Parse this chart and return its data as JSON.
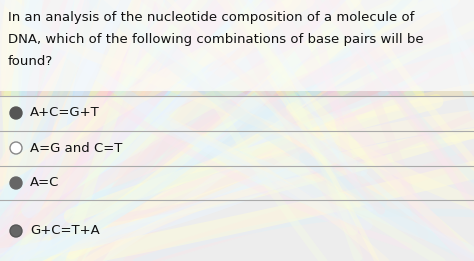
{
  "question_text_line1": "In an analysis of the nucleotide composition of a molecule of",
  "question_text_line2": "DNA, which of the following combinations of base pairs will be",
  "question_text_line3": "found?",
  "options": [
    "A+C=G+T",
    "A=G and C=T",
    "A=C",
    "G+C=T+A"
  ],
  "bg_color": "#d8d8d8",
  "text_color": "#111111",
  "divider_color": "#aaaaaa",
  "font_size_question": 9.5,
  "font_size_option": 9.5,
  "wave_colors": [
    "#b8dff0",
    "#f0c8d0",
    "#fffaaa",
    "#c8eef8",
    "#f8c8e0",
    "#e8f8c0",
    "#d0e8ff",
    "#ffeebb"
  ],
  "option_bg_alpha": 0.55
}
